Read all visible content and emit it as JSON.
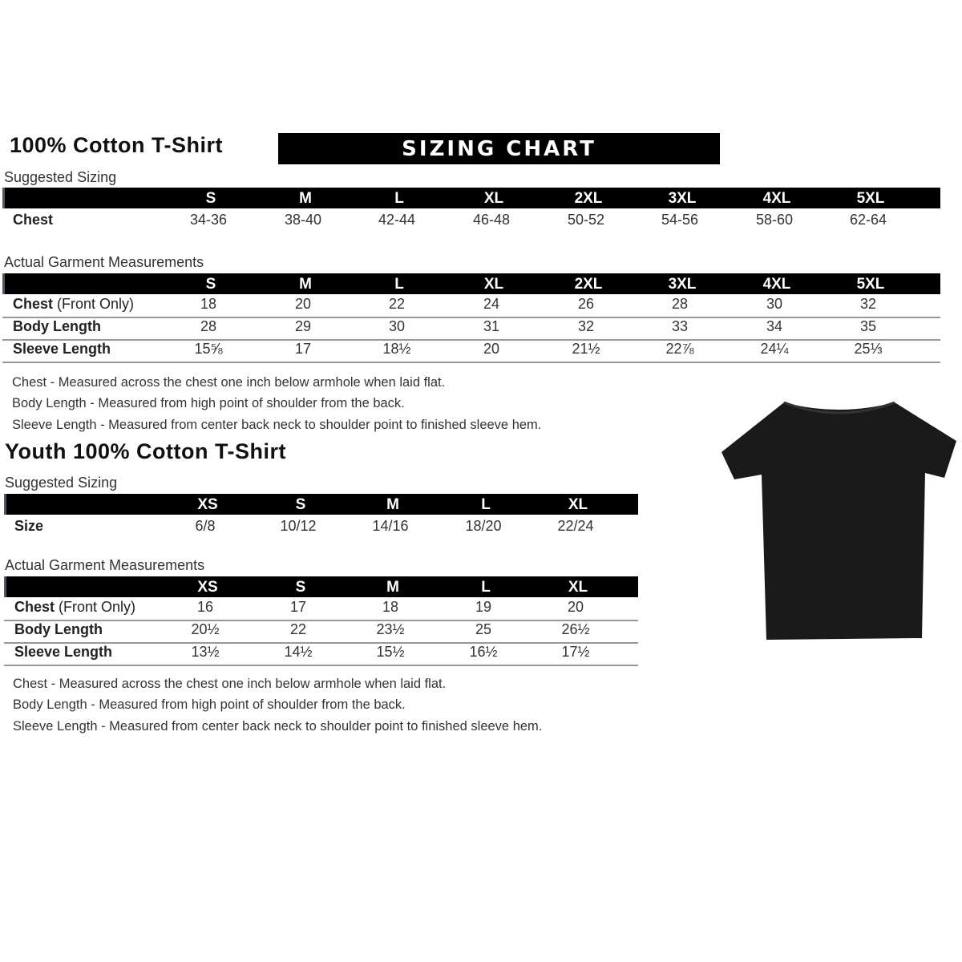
{
  "adult": {
    "title": "100% Cotton T-Shirt",
    "banner": "SIZING CHART",
    "suggested_label": "Suggested Sizing",
    "sizes": [
      "S",
      "M",
      "L",
      "XL",
      "2XL",
      "3XL",
      "4XL",
      "5XL"
    ],
    "suggested_rows": [
      {
        "label": "Chest",
        "values": [
          "34-36",
          "38-40",
          "42-44",
          "46-48",
          "50-52",
          "54-56",
          "58-60",
          "62-64"
        ]
      }
    ],
    "actual_label": "Actual Garment Measurements",
    "actual_rows": [
      {
        "label": "Chest",
        "label_note": "(Front Only)",
        "values": [
          "18",
          "20",
          "22",
          "24",
          "26",
          "28",
          "30",
          "32"
        ]
      },
      {
        "label": "Body Length",
        "values": [
          "28",
          "29",
          "30",
          "31",
          "32",
          "33",
          "34",
          "35"
        ]
      },
      {
        "label": "Sleeve Length",
        "values": [
          "15⅝",
          "17",
          "18½",
          "20",
          "21½",
          "22⅞",
          "24¼",
          "25⅓"
        ]
      }
    ],
    "notes": [
      "Chest - Measured across the chest one inch below armhole when laid flat.",
      "Body Length - Measured from high point of shoulder from the back.",
      "Sleeve Length - Measured from center back neck to shoulder point to finished sleeve hem."
    ]
  },
  "youth": {
    "title": "Youth 100% Cotton T-Shirt",
    "suggested_label": "Suggested Sizing",
    "sizes": [
      "XS",
      "S",
      "M",
      "L",
      "XL"
    ],
    "suggested_rows": [
      {
        "label": "Size",
        "values": [
          "6/8",
          "10/12",
          "14/16",
          "18/20",
          "22/24"
        ]
      }
    ],
    "actual_label": "Actual Garment Measurements",
    "actual_rows": [
      {
        "label": "Chest",
        "label_note": "(Front Only)",
        "values": [
          "16",
          "17",
          "18",
          "19",
          "20"
        ]
      },
      {
        "label": "Body Length",
        "values": [
          "20½",
          "22",
          "23½",
          "25",
          "26½"
        ]
      },
      {
        "label": "Sleeve Length",
        "values": [
          "13½",
          "14½",
          "15½",
          "16½",
          "17½"
        ]
      }
    ],
    "notes": [
      "Chest - Measured across the chest one inch below armhole when laid flat.",
      "Body Length - Measured from high point of shoulder from the back.",
      "Sleeve Length - Measured from center back neck to shoulder point to finished sleeve hem."
    ]
  },
  "colors": {
    "bar": "#000000",
    "divider": "#999999",
    "shirt": "#1a1a1a"
  }
}
